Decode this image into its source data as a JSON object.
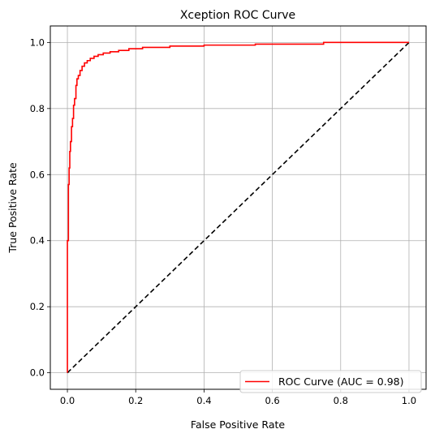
{
  "chart_data": {
    "type": "line",
    "title": "Xception ROC Curve",
    "xlabel": "False Positive Rate",
    "ylabel": "True Positive Rate",
    "xlim": [
      -0.05,
      1.05
    ],
    "ylim": [
      -0.05,
      1.05
    ],
    "x_ticks": [
      0.0,
      0.2,
      0.4,
      0.6,
      0.8,
      1.0
    ],
    "y_ticks": [
      0.0,
      0.2,
      0.4,
      0.6,
      0.8,
      1.0
    ],
    "x_tick_labels": [
      "0.0",
      "0.2",
      "0.4",
      "0.6",
      "0.8",
      "1.0"
    ],
    "y_tick_labels": [
      "0.0",
      "0.2",
      "0.4",
      "0.6",
      "0.8",
      "1.0"
    ],
    "grid": true,
    "legend_position": "lower-right",
    "series": [
      {
        "name": "ROC Curve (AUC = 0.98)",
        "color": "#ff0000",
        "style": "solid",
        "step": true,
        "x": [
          0.0,
          0.0,
          0.003,
          0.003,
          0.005,
          0.005,
          0.007,
          0.007,
          0.009,
          0.009,
          0.012,
          0.012,
          0.015,
          0.015,
          0.018,
          0.018,
          0.021,
          0.021,
          0.025,
          0.025,
          0.028,
          0.028,
          0.032,
          0.032,
          0.037,
          0.037,
          0.043,
          0.043,
          0.05,
          0.05,
          0.058,
          0.058,
          0.067,
          0.067,
          0.078,
          0.078,
          0.09,
          0.09,
          0.105,
          0.105,
          0.125,
          0.125,
          0.15,
          0.15,
          0.18,
          0.18,
          0.22,
          0.22,
          0.3,
          0.3,
          0.4,
          0.4,
          0.55,
          0.55,
          0.75,
          0.75,
          1.0
        ],
        "y": [
          0.0,
          0.4,
          0.4,
          0.57,
          0.57,
          0.62,
          0.62,
          0.67,
          0.67,
          0.7,
          0.7,
          0.745,
          0.745,
          0.77,
          0.77,
          0.81,
          0.81,
          0.83,
          0.83,
          0.87,
          0.87,
          0.89,
          0.89,
          0.9,
          0.9,
          0.915,
          0.915,
          0.928,
          0.928,
          0.938,
          0.938,
          0.945,
          0.945,
          0.952,
          0.952,
          0.958,
          0.958,
          0.963,
          0.963,
          0.968,
          0.968,
          0.972,
          0.972,
          0.976,
          0.976,
          0.981,
          0.981,
          0.985,
          0.985,
          0.989,
          0.989,
          0.992,
          0.992,
          0.995,
          0.995,
          1.0,
          1.0
        ]
      },
      {
        "name": "",
        "color": "#000000",
        "style": "dashed",
        "x": [
          0.0,
          1.0
        ],
        "y": [
          0.0,
          1.0
        ]
      }
    ]
  }
}
